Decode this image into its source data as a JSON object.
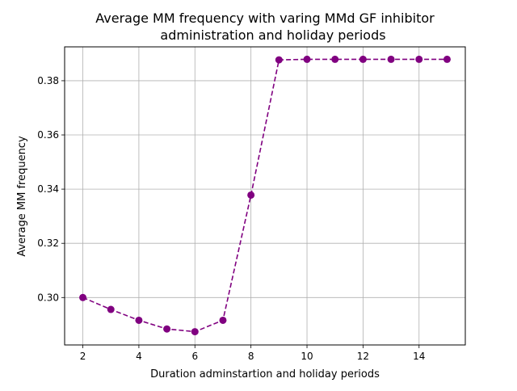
{
  "chart_data": {
    "type": "line",
    "title_line1": "Average MM frequency with varing MMd GF inhibitor",
    "title_line2": "administration and holiday periods",
    "xlabel": "Duration adminstartion and holiday periods",
    "ylabel": "Average MM frequency",
    "xlim": [
      1.35,
      15.65
    ],
    "ylim": [
      0.2825,
      0.3925
    ],
    "grid": true,
    "xticks": [
      2,
      4,
      6,
      8,
      10,
      12,
      14
    ],
    "xtick_labels": [
      "2",
      "4",
      "6",
      "8",
      "10",
      "12",
      "14"
    ],
    "yticks": [
      0.3,
      0.32,
      0.34,
      0.36,
      0.38
    ],
    "ytick_labels": [
      "0.30",
      "0.32",
      "0.34",
      "0.36",
      "0.38"
    ],
    "series": [
      {
        "color": "#800080",
        "line_style": "dashed",
        "marker": "circle",
        "x": [
          2,
          3,
          4,
          5,
          6,
          7,
          8,
          9,
          10,
          11,
          12,
          13,
          14,
          15
        ],
        "y": [
          0.3,
          0.2956,
          0.2916,
          0.2884,
          0.2874,
          0.2916,
          0.3378,
          0.3877,
          0.3879,
          0.3879,
          0.3879,
          0.3879,
          0.3879,
          0.3879
        ]
      }
    ]
  }
}
